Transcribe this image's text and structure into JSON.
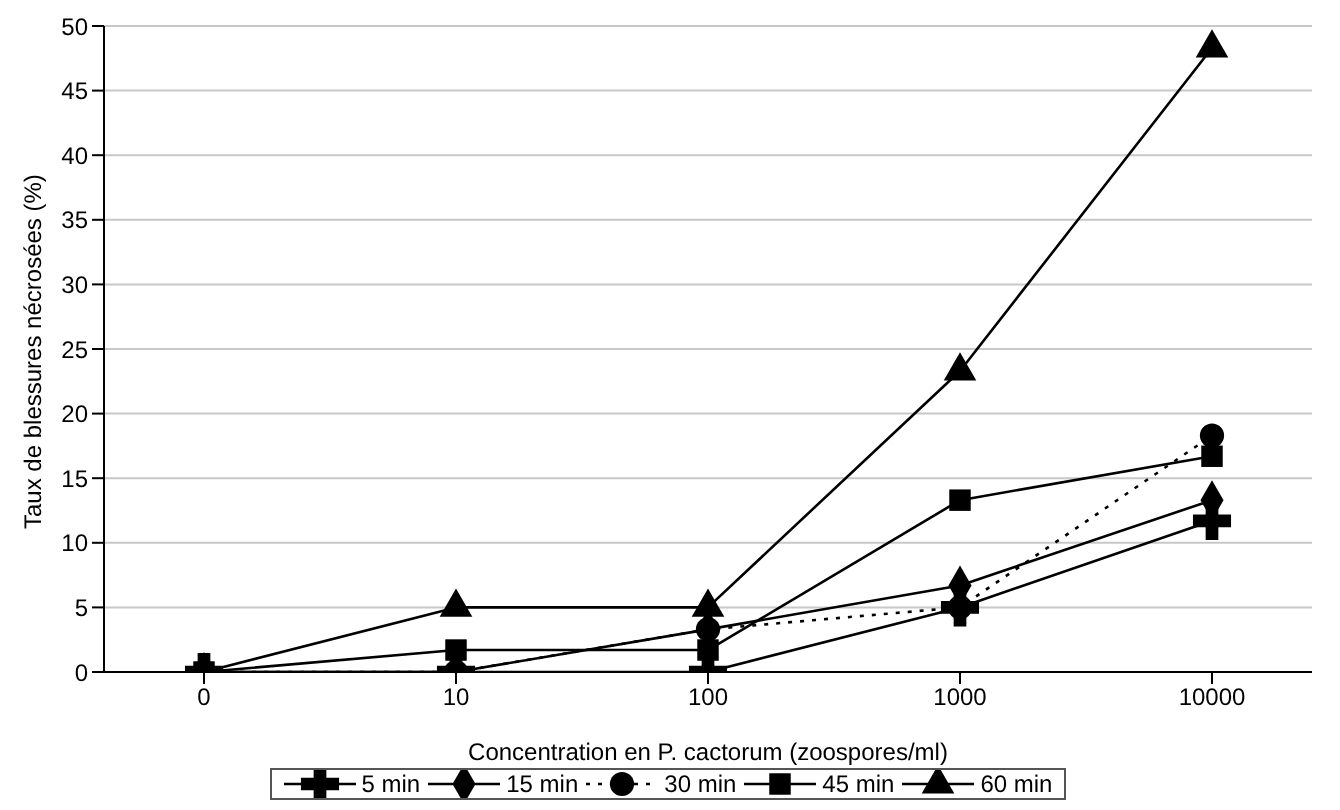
{
  "chart_data": {
    "type": "line",
    "xlabel": "Concentration en P. cactorum (zoospores/ml)",
    "ylabel": "Taux de blessures nécrosées (%)",
    "categories": [
      "0",
      "10",
      "100",
      "1000",
      "10000"
    ],
    "series": [
      {
        "name": "5 min",
        "color": "#000000",
        "marker": "cross",
        "line_style": "solid",
        "values": [
          0,
          0,
          0,
          5,
          11.7
        ]
      },
      {
        "name": "15 min",
        "color": "#000000",
        "marker": "diamond",
        "line_style": "solid",
        "values": [
          0,
          0,
          3.3,
          6.7,
          13.3
        ]
      },
      {
        "name": "30 min",
        "color": "#000000",
        "marker": "circle",
        "line_style": "dotted",
        "values": [
          0,
          0,
          3.3,
          5,
          18.3
        ]
      },
      {
        "name": "45 min",
        "color": "#000000",
        "marker": "square",
        "line_style": "solid",
        "values": [
          0,
          1.7,
          1.7,
          13.3,
          16.7
        ]
      },
      {
        "name": "60 min",
        "color": "#000000",
        "marker": "triangle",
        "line_style": "solid",
        "values": [
          0,
          5,
          5,
          23.3,
          48.3
        ]
      }
    ],
    "ylim": [
      0,
      50
    ],
    "yticks": [
      0,
      5,
      10,
      15,
      20,
      25,
      30,
      35,
      40,
      45,
      50
    ],
    "grid": "y",
    "legend": "bottom"
  }
}
